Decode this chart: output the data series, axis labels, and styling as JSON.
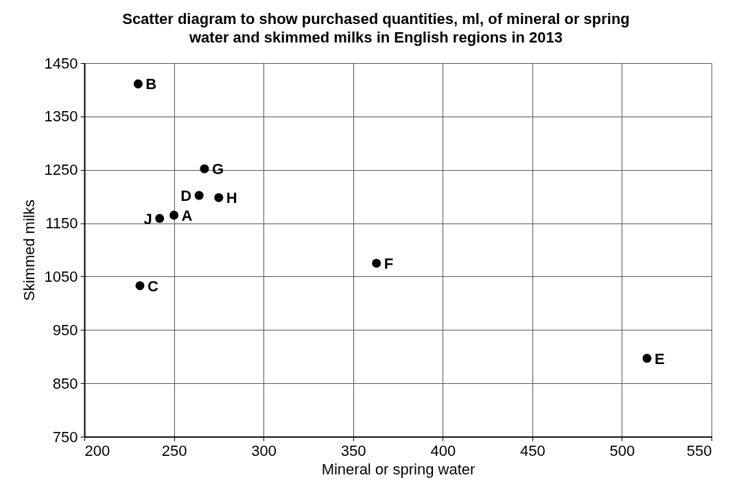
{
  "chart_data": {
    "type": "scatter",
    "title": "Scatter diagram to show purchased quantities, ml, of mineral or spring water and skimmed milks in English regions in 2013",
    "xlabel": "Mineral or spring water",
    "ylabel": "Skimmed milks",
    "x": [
      230,
      267,
      264,
      275,
      250,
      242,
      231,
      363,
      514
    ],
    "series": [
      {
        "color": "#000000",
        "values": [
          1411,
          1252,
          1202,
          1198,
          1165,
          1159,
          1033,
          1075,
          897
        ]
      }
    ],
    "annotations": [
      {
        "text": "B",
        "x": 230,
        "y": 1411
      },
      {
        "text": "G",
        "x": 267,
        "y": 1252
      },
      {
        "text": "D",
        "x": 264,
        "y": 1202
      },
      {
        "text": "H",
        "x": 275,
        "y": 1198
      },
      {
        "text": "A",
        "x": 250,
        "y": 1165
      },
      {
        "text": "J",
        "x": 242,
        "y": 1159
      },
      {
        "text": "C",
        "x": 231,
        "y": 1033
      },
      {
        "text": "F",
        "x": 363,
        "y": 1075
      },
      {
        "text": "E",
        "x": 514,
        "y": 897
      }
    ],
    "xlim": [
      200,
      550
    ],
    "xticks": [
      200,
      250,
      300,
      350,
      400,
      450,
      500,
      550
    ],
    "ylim": [
      750,
      1450
    ],
    "yticks": [
      750,
      850,
      950,
      1050,
      1150,
      1250,
      1350,
      1450
    ],
    "grid": true,
    "marker": "circle"
  }
}
